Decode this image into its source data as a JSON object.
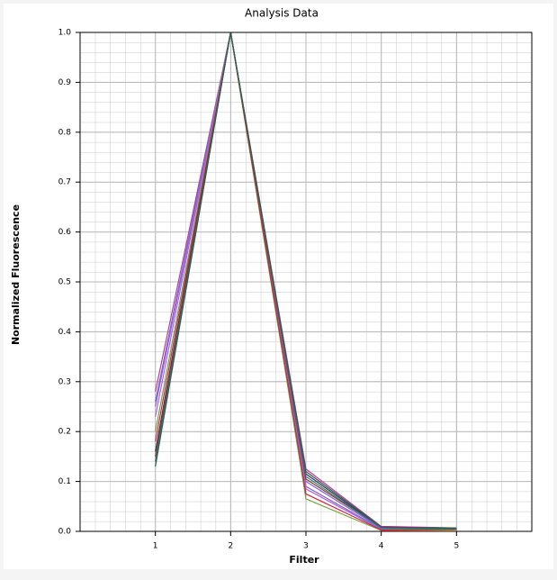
{
  "chart_data": {
    "type": "line",
    "title": "Analysis Data",
    "x_label": "Filter",
    "y_label": "Normalized Fluorescence",
    "x": [
      1,
      2,
      3,
      4,
      5
    ],
    "xlim": [
      0,
      6
    ],
    "xticks": [
      1,
      2,
      3,
      4,
      5
    ],
    "ylim": [
      0,
      1
    ],
    "yticks": [
      {
        "value": 0,
        "label": "0.0"
      },
      0.1,
      0.2,
      0.3,
      0.4,
      0.5,
      0.6,
      0.7,
      0.8,
      0.9,
      {
        "value": 1,
        "label": "1.0"
      }
    ],
    "grid": true,
    "series": [
      {
        "color": "#c0399f",
        "values": [
          0.28,
          1,
          0.125,
          0.01,
          0.007
        ]
      },
      {
        "color": "#8a5cc8",
        "values": [
          0.26,
          1,
          0.09,
          0.005,
          0.005
        ]
      },
      {
        "color": "#7a6be0",
        "values": [
          0.25,
          1,
          0.1,
          0.006,
          0.005
        ]
      },
      {
        "color": "#b060d0",
        "values": [
          0.23,
          1,
          0.085,
          0.004,
          0.004
        ]
      },
      {
        "color": "#7aa040",
        "values": [
          0.2,
          1,
          0.065,
          0.002,
          0.003
        ]
      },
      {
        "color": "#c03040",
        "values": [
          0.18,
          1,
          0.075,
          0.003,
          0.004
        ]
      },
      {
        "color": "#2a3a5a",
        "values": [
          0.16,
          1,
          0.115,
          0.008,
          0.006
        ]
      },
      {
        "color": "#8a3a2a",
        "values": [
          0.15,
          1,
          0.105,
          0.008,
          0.006
        ]
      },
      {
        "color": "#3a7070",
        "values": [
          0.14,
          1,
          0.11,
          0.007,
          0.005
        ]
      },
      {
        "color": "#2e5e4e",
        "values": [
          0.13,
          1,
          0.12,
          0.009,
          0.006
        ]
      }
    ]
  }
}
